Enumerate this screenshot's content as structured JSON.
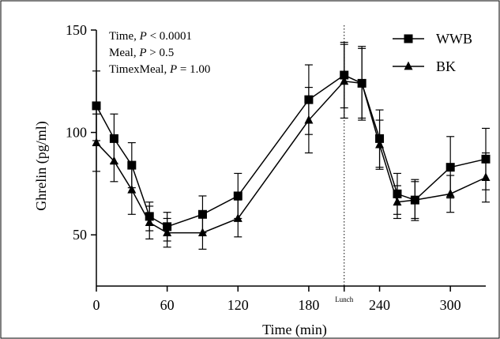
{
  "chart_data": {
    "type": "line",
    "xlabel": "Time (min)",
    "ylabel": "Ghrelin (pg/ml)",
    "xlim": [
      0,
      330
    ],
    "ylim": [
      25,
      150
    ],
    "x_ticks": [
      0,
      60,
      120,
      180,
      240,
      300
    ],
    "y_ticks": [
      50,
      100,
      150
    ],
    "grid": false,
    "legend_position": "top-right",
    "annotations": {
      "stats": [
        {
          "name": "Time",
          "rel": " < ",
          "value": "0.0001"
        },
        {
          "name": "Meal",
          "rel": " > ",
          "value": "0.5"
        },
        {
          "name": "TimexMeal",
          "rel": " = ",
          "value": "1.00"
        }
      ],
      "p_symbol": "P",
      "separator": ", ",
      "marker_line": {
        "x": 210,
        "label": "Lunch"
      }
    },
    "series": [
      {
        "name": "WWB",
        "marker": "square",
        "x": [
          0,
          15,
          30,
          45,
          60,
          90,
          120,
          180,
          210,
          225,
          240,
          255,
          270,
          300,
          330
        ],
        "y": [
          113,
          97,
          84,
          59,
          54,
          60,
          69,
          116,
          128,
          124,
          97,
          70,
          67,
          83,
          87
        ],
        "err": [
          17,
          12,
          11,
          7,
          7,
          9,
          11,
          17,
          16,
          18,
          14,
          10,
          10,
          15,
          15
        ]
      },
      {
        "name": "BK",
        "marker": "triangle",
        "x": [
          0,
          15,
          30,
          45,
          60,
          90,
          120,
          180,
          210,
          225,
          240,
          255,
          270,
          300,
          330
        ],
        "y": [
          95,
          86,
          72,
          56,
          51,
          51,
          58,
          106,
          125,
          124,
          94,
          66,
          67,
          70,
          78
        ],
        "err": [
          14,
          10,
          12,
          8,
          7,
          8,
          9,
          16,
          18,
          17,
          12,
          8,
          9,
          9,
          12
        ]
      }
    ]
  }
}
